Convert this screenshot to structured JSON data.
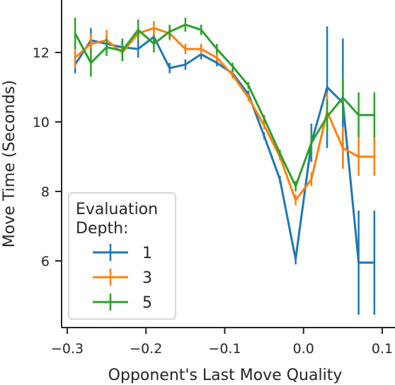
{
  "chart_data": {
    "type": "line",
    "xlabel": "Opponent's Last Move Quality",
    "ylabel": "Move Time (Seconds)",
    "xlim": [
      -0.31,
      0.1
    ],
    "ylim": [
      4.0,
      13.5
    ],
    "x_ticks": [
      -0.3,
      -0.2,
      -0.1,
      0.0,
      0.1
    ],
    "x_tick_labels": [
      "−0.3",
      "−0.2",
      "−0.1",
      "0.0",
      "0.1"
    ],
    "y_ticks": [
      6,
      8,
      10,
      12
    ],
    "y_tick_labels": [
      "6",
      "8",
      "10",
      "12"
    ],
    "grid": false,
    "legend": {
      "title": "Evaluation\nDepth:",
      "title_lines": [
        "Evaluation",
        "Depth:"
      ],
      "position": "lower-left"
    },
    "series": [
      {
        "name": "1",
        "color": "#1f77b4",
        "x": [
          -0.29,
          -0.27,
          -0.25,
          -0.23,
          -0.21,
          -0.19,
          -0.17,
          -0.15,
          -0.13,
          -0.11,
          -0.09,
          -0.07,
          -0.05,
          -0.03,
          -0.01,
          0.01,
          0.03,
          0.05,
          0.07,
          0.09
        ],
        "y": [
          11.65,
          12.35,
          12.25,
          12.15,
          12.1,
          12.45,
          11.55,
          11.65,
          11.95,
          11.7,
          11.4,
          10.8,
          9.6,
          8.35,
          6.05,
          9.4,
          11.0,
          10.55,
          5.95,
          5.95
        ],
        "err": [
          0.25,
          0.35,
          0.25,
          0.25,
          0.25,
          0.2,
          0.15,
          0.15,
          0.15,
          0.1,
          0.1,
          0.1,
          0.1,
          0.1,
          0.15,
          0.55,
          1.75,
          1.85,
          1.5,
          1.5
        ]
      },
      {
        "name": "3",
        "color": "#ff7f0e",
        "x": [
          -0.29,
          -0.27,
          -0.25,
          -0.23,
          -0.21,
          -0.19,
          -0.17,
          -0.15,
          -0.13,
          -0.11,
          -0.09,
          -0.07,
          -0.05,
          -0.03,
          -0.01,
          0.01,
          0.03,
          0.05,
          0.07,
          0.09
        ],
        "y": [
          11.85,
          12.25,
          12.35,
          12.0,
          12.55,
          12.7,
          12.55,
          12.1,
          12.1,
          11.85,
          11.35,
          10.7,
          9.9,
          9.0,
          7.75,
          8.35,
          10.3,
          9.25,
          9.0,
          9.0
        ],
        "err": [
          0.3,
          0.3,
          0.3,
          0.25,
          0.2,
          0.2,
          0.2,
          0.15,
          0.15,
          0.1,
          0.1,
          0.1,
          0.1,
          0.1,
          0.15,
          0.2,
          0.55,
          0.6,
          0.55,
          0.55
        ]
      },
      {
        "name": "5",
        "color": "#2ca02c",
        "x": [
          -0.29,
          -0.27,
          -0.25,
          -0.23,
          -0.21,
          -0.19,
          -0.17,
          -0.15,
          -0.13,
          -0.11,
          -0.09,
          -0.07,
          -0.05,
          -0.03,
          -0.01,
          0.01,
          0.03,
          0.05,
          0.07,
          0.09
        ],
        "y": [
          12.55,
          11.7,
          12.15,
          12.05,
          12.65,
          12.25,
          12.6,
          12.8,
          12.65,
          12.1,
          11.6,
          11.05,
          10.1,
          9.1,
          8.15,
          9.4,
          10.15,
          10.7,
          10.2,
          10.2
        ],
        "err": [
          0.45,
          0.4,
          0.25,
          0.3,
          0.3,
          0.25,
          0.2,
          0.2,
          0.15,
          0.15,
          0.1,
          0.1,
          0.1,
          0.1,
          0.15,
          0.4,
          0.5,
          0.6,
          0.65,
          0.65
        ]
      }
    ]
  }
}
